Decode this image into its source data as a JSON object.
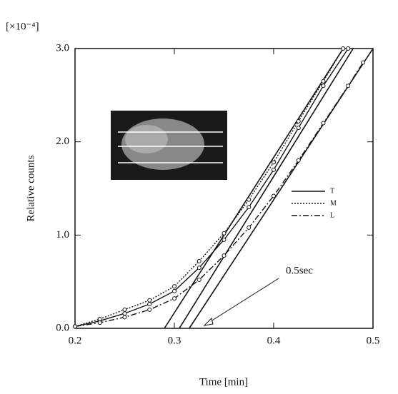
{
  "chart_data": {
    "type": "line",
    "y_multiplier": "[×10⁻⁴]",
    "xlabel": "Time [min]",
    "ylabel": "Relative counts",
    "xlim": [
      0.2,
      0.5
    ],
    "xticks": [
      0.2,
      0.3,
      0.4,
      0.5
    ],
    "ylim": [
      0,
      3.0
    ],
    "yticks": [
      {
        "value": 0,
        "label": "0.0"
      },
      {
        "value": 1,
        "label": "1.0"
      },
      {
        "value": 2,
        "label": "2.0"
      },
      {
        "value": 3,
        "label": "3.0"
      }
    ],
    "series": [
      {
        "name": "T",
        "color": "#111111",
        "dash": "solid",
        "x": [
          0.2,
          0.225,
          0.25,
          0.275,
          0.3,
          0.325,
          0.35,
          0.375,
          0.4,
          0.425,
          0.45,
          0.475
        ],
        "values": [
          0.02,
          0.08,
          0.16,
          0.26,
          0.4,
          0.65,
          0.95,
          1.3,
          1.7,
          2.15,
          2.6,
          3.0
        ]
      },
      {
        "name": "M",
        "color": "#111111",
        "dash": "dotted",
        "x": [
          0.2,
          0.225,
          0.25,
          0.275,
          0.3,
          0.325,
          0.35,
          0.375,
          0.4,
          0.425,
          0.45,
          0.47
        ],
        "values": [
          0.02,
          0.1,
          0.2,
          0.3,
          0.45,
          0.72,
          1.02,
          1.38,
          1.78,
          2.22,
          2.65,
          3.0
        ]
      },
      {
        "name": "L",
        "color": "#111111",
        "dash": "dashdot",
        "x": [
          0.2,
          0.225,
          0.25,
          0.275,
          0.3,
          0.325,
          0.35,
          0.375,
          0.4,
          0.425,
          0.45,
          0.475,
          0.49
        ],
        "values": [
          0.02,
          0.06,
          0.12,
          0.2,
          0.32,
          0.52,
          0.78,
          1.08,
          1.42,
          1.8,
          2.2,
          2.6,
          2.85
        ]
      }
    ],
    "tangent_lines": [
      {
        "x": [
          0.29,
          0.47
        ],
        "values": [
          0,
          3.0
        ]
      },
      {
        "x": [
          0.305,
          0.48
        ],
        "values": [
          0,
          3.0
        ]
      },
      {
        "x": [
          0.315,
          0.5
        ],
        "values": [
          0,
          3.0
        ]
      }
    ],
    "annotation": "0.5sec",
    "legend_position": "right"
  }
}
